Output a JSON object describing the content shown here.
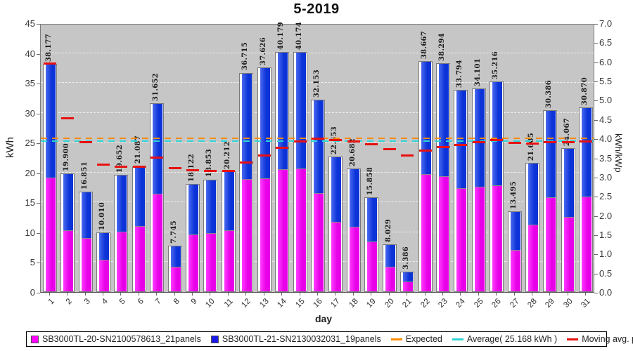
{
  "colors": {
    "magenta": "#e800e8",
    "magenta_light": "#ff3cff",
    "magenta_legend": "#ff00ff",
    "blue": "#0c33d8",
    "blue_light": "#4a6af0",
    "blue_legend": "#1a1ae8",
    "orange": "#ff8c00",
    "cyan": "#2fd4d4",
    "red": "#e81010",
    "plot_bg": "#c6c6c6"
  },
  "legend": {
    "series1": "SB3000TL-20-SN2100578613_21panels",
    "series2": "SB3000TL-21-SN2130032031_19panels",
    "expected": "Expected",
    "average": "Average( 25.168 kWh )",
    "moving": "Moving avg. per day."
  },
  "chart_data": {
    "type": "bar",
    "title": "5-2019",
    "xlabel": "day",
    "ylabel_left": "kWh",
    "ylabel_right": "kWh/kWp",
    "ylim_left": [
      0,
      45
    ],
    "ylim_right": [
      0.0,
      7.0
    ],
    "yticks_left": [
      "0",
      "5",
      "10",
      "15",
      "20",
      "25",
      "30",
      "35",
      "40",
      "45"
    ],
    "yticks_right": [
      "0.0",
      "0.5",
      "1.0",
      "1.5",
      "2.0",
      "2.5",
      "3.0",
      "3.5",
      "4.0",
      "4.5",
      "5.0",
      "5.5",
      "6.0",
      "6.5",
      "7.0"
    ],
    "grid": "horizontal-dashed-every-5kWh",
    "legend_position": "bottom",
    "categories": [
      "1",
      "2",
      "3",
      "4",
      "5",
      "6",
      "7",
      "8",
      "9",
      "10",
      "11",
      "12",
      "13",
      "14",
      "15",
      "16",
      "17",
      "18",
      "19",
      "20",
      "21",
      "22",
      "23",
      "24",
      "25",
      "26",
      "27",
      "28",
      "29",
      "30",
      "31"
    ],
    "stacked": true,
    "totals": [
      38.177,
      19.9,
      16.851,
      10.01,
      19.652,
      21.087,
      31.652,
      7.745,
      18.122,
      18.853,
      20.212,
      36.715,
      37.626,
      40.179,
      40.174,
      32.153,
      22.653,
      20.682,
      15.858,
      8.029,
      3.386,
      38.667,
      38.294,
      33.794,
      34.101,
      35.216,
      13.495,
      21.605,
      30.386,
      24.067,
      30.87
    ],
    "total_labels": [
      "38.177",
      "19.900",
      "16.851",
      "10.010",
      "19.652",
      "21.087",
      "31.652",
      "7.745",
      "18.122",
      "18.853",
      "20.212",
      "36.715",
      "37.626",
      "40.179",
      "40.174",
      "32.153",
      "22.653",
      "20.682",
      "15.858",
      "8.029",
      "3.386",
      "38.667",
      "38.294",
      "33.794",
      "34.101",
      "35.216",
      "13.495",
      "21.605",
      "30.386",
      "24.067",
      "30.870"
    ],
    "series": [
      {
        "name": "SB3000TL-20-SN2100578613_21panels",
        "color": "#ff00ff",
        "position": "bottom",
        "values": [
          19.0,
          10.2,
          8.9,
          5.3,
          10.0,
          10.9,
          16.3,
          4.1,
          9.5,
          9.8,
          10.2,
          18.8,
          18.9,
          20.4,
          20.6,
          16.4,
          11.6,
          10.8,
          8.4,
          4.1,
          1.7,
          19.6,
          19.3,
          17.3,
          17.5,
          17.8,
          6.9,
          11.2,
          15.7,
          12.5,
          15.9
        ]
      },
      {
        "name": "SB3000TL-21-SN2130032031_19panels",
        "color": "#1a1ae8",
        "position": "top",
        "values": [
          19.177,
          9.7,
          7.951,
          4.71,
          9.652,
          10.187,
          15.352,
          3.645,
          8.622,
          9.053,
          10.012,
          17.915,
          18.726,
          19.779,
          19.574,
          15.753,
          11.053,
          9.882,
          7.458,
          3.929,
          1.686,
          19.067,
          18.994,
          16.494,
          16.601,
          17.416,
          6.595,
          10.405,
          14.686,
          11.567,
          14.97
        ]
      }
    ],
    "expected_value": 25.6,
    "average_value": 25.168,
    "moving_avg": [
      38.177,
      29.039,
      24.976,
      21.235,
      20.918,
      20.946,
      22.476,
      20.634,
      20.355,
      20.205,
      20.206,
      21.581,
      22.815,
      24.056,
      25.13,
      25.569,
      25.398,
      25.136,
      24.648,
      23.817,
      22.844,
      23.563,
      24.203,
      24.603,
      24.983,
      25.376,
      24.936,
      24.817,
      25.009,
      24.978,
      25.168
    ]
  }
}
